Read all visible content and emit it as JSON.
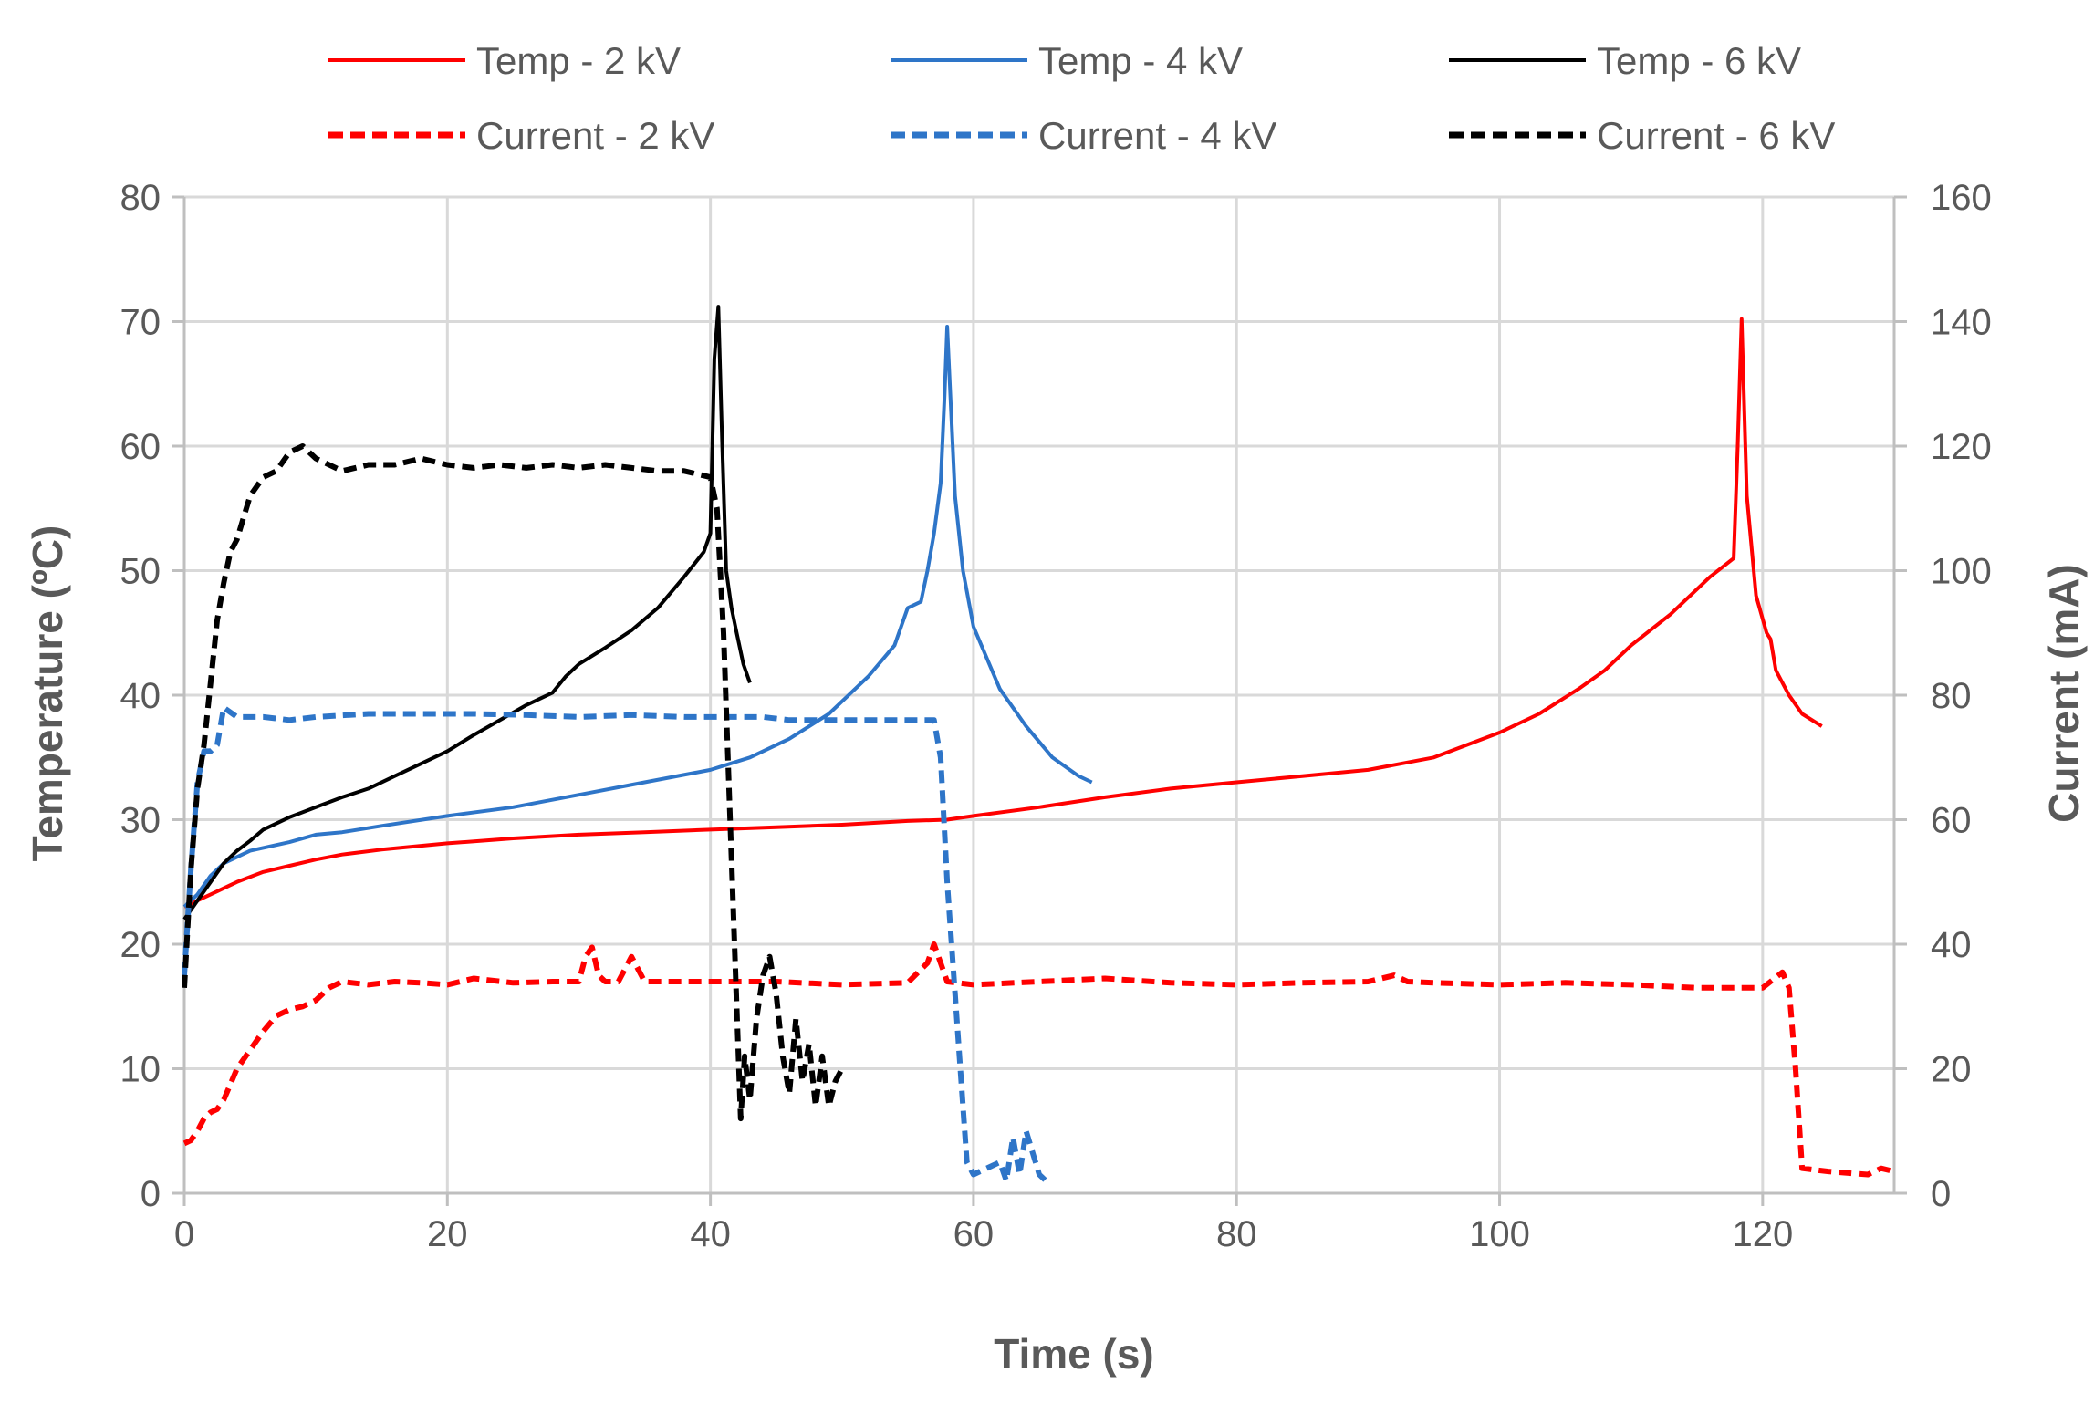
{
  "chart_data": {
    "type": "line",
    "title": "",
    "xlabel": "Time (s)",
    "ylabel": "Temperature (ºC)",
    "y2label": "Current (mA)",
    "xlim": [
      0,
      130
    ],
    "ylim": [
      0,
      80
    ],
    "y2lim": [
      0,
      160
    ],
    "xticks": [
      "0",
      "20",
      "40",
      "60",
      "80",
      "100",
      "120"
    ],
    "yticks": [
      "0",
      "10",
      "20",
      "30",
      "40",
      "50",
      "60",
      "70",
      "80"
    ],
    "y2ticks": [
      "0",
      "20",
      "40",
      "60",
      "80",
      "100",
      "120",
      "140",
      "160"
    ],
    "grid": true,
    "legend_position": "top",
    "series": [
      {
        "name": "Temp - 2 kV",
        "axis": "left",
        "color": "#ff0000",
        "dash": "solid",
        "x": [
          0,
          1,
          2,
          4,
          6,
          8,
          10,
          12,
          15,
          20,
          25,
          30,
          35,
          40,
          45,
          50,
          55,
          58,
          60,
          65,
          70,
          75,
          80,
          85,
          90,
          95,
          100,
          103,
          106,
          108,
          110,
          113,
          116,
          117.8,
          118.1,
          118.4,
          118.8,
          119.5,
          120.3,
          120.6,
          121,
          122,
          123,
          124.5
        ],
        "y": [
          23,
          23.5,
          24,
          25,
          25.8,
          26.3,
          26.8,
          27.2,
          27.6,
          28.1,
          28.5,
          28.8,
          29,
          29.2,
          29.4,
          29.6,
          29.9,
          30,
          30.3,
          31,
          31.8,
          32.5,
          33,
          33.5,
          34,
          35,
          37,
          38.5,
          40.5,
          42,
          44,
          46.5,
          49.5,
          51,
          60,
          70.2,
          56,
          48,
          45,
          44.5,
          42,
          40,
          38.5,
          37.5
        ]
      },
      {
        "name": "Temp - 4 kV",
        "axis": "left",
        "color": "#2e75c8",
        "dash": "solid",
        "x": [
          0,
          1,
          2,
          3,
          5,
          8,
          10,
          12,
          15,
          20,
          25,
          30,
          35,
          40,
          43,
          46,
          49,
          52,
          54,
          55,
          56,
          56.5,
          57,
          57.5,
          57.8,
          58,
          58.2,
          58.6,
          59.2,
          60,
          62,
          64,
          66,
          68,
          69
        ],
        "y": [
          23,
          24,
          25.5,
          26.5,
          27.5,
          28.2,
          28.8,
          29,
          29.5,
          30.3,
          31,
          32,
          33,
          34,
          35,
          36.5,
          38.5,
          41.5,
          44,
          47,
          47.5,
          50,
          53,
          57,
          64,
          69.6,
          65,
          56,
          50,
          45.5,
          40.5,
          37.5,
          35,
          33.5,
          33
        ]
      },
      {
        "name": "Temp - 6 kV",
        "axis": "left",
        "color": "#000000",
        "dash": "solid",
        "x": [
          0,
          1,
          2,
          3,
          4,
          5,
          6,
          8,
          10,
          12,
          14,
          16,
          18,
          20,
          22,
          24,
          26,
          28,
          29,
          30,
          32,
          34,
          36,
          38,
          39.5,
          40,
          40.3,
          40.6,
          40.9,
          41.2,
          41.6,
          42,
          42.5,
          43
        ],
        "y": [
          22,
          23.5,
          25,
          26.5,
          27.5,
          28.3,
          29.2,
          30.2,
          31,
          31.8,
          32.5,
          33.5,
          34.5,
          35.5,
          36.8,
          38,
          39.2,
          40.2,
          41.5,
          42.5,
          43.8,
          45.2,
          47,
          49.5,
          51.5,
          53,
          67,
          71.2,
          60,
          50,
          47,
          45,
          42.5,
          41
        ]
      },
      {
        "name": "Current -  2 kV",
        "axis": "right",
        "color": "#ff0000",
        "dash": "dashed",
        "x": [
          0,
          0.5,
          1,
          1.5,
          2,
          2.5,
          3,
          3.5,
          4,
          5,
          6,
          7,
          8,
          9,
          10,
          11,
          12,
          14,
          16,
          18,
          20,
          22,
          25,
          28,
          30,
          30.5,
          31,
          31.5,
          32,
          33,
          34,
          34.5,
          35,
          37,
          40,
          45,
          50,
          55,
          56.5,
          57,
          57.5,
          58,
          60,
          65,
          70,
          75,
          80,
          85,
          90,
          92,
          93,
          95,
          100,
          105,
          110,
          115,
          120,
          121.5,
          122,
          122.5,
          123,
          125,
          128,
          129,
          130
        ],
        "y": [
          8,
          8.5,
          10,
          12,
          13,
          13.5,
          15,
          17.5,
          20,
          23,
          26,
          28.5,
          29.5,
          30,
          31,
          33,
          34,
          33.5,
          34,
          33.8,
          33.5,
          34.5,
          33.8,
          34,
          34,
          38,
          39.5,
          35,
          34,
          34,
          38,
          36,
          34,
          34,
          34,
          34,
          33.5,
          33.8,
          37,
          40,
          37,
          34,
          33.5,
          34,
          34.5,
          33.8,
          33.5,
          33.8,
          34,
          35,
          34,
          33.8,
          33.5,
          33.8,
          33.5,
          33,
          33,
          35.5,
          33,
          20,
          4,
          3.5,
          3,
          4,
          3.5
        ]
      },
      {
        "name": "Current - 4 kV",
        "axis": "right",
        "color": "#2e75c8",
        "dash": "dashed",
        "x": [
          0,
          0.5,
          1,
          1.5,
          2,
          2.5,
          3,
          4,
          5,
          6,
          8,
          10,
          14,
          18,
          22,
          26,
          30,
          34,
          38,
          40,
          42,
          44,
          46,
          50,
          54,
          56,
          57,
          57.5,
          58,
          58.5,
          59,
          59.5,
          60,
          61,
          62,
          62.5,
          63,
          63.5,
          64,
          65,
          65.5
        ],
        "y": [
          35,
          52,
          66,
          71,
          71,
          72,
          78,
          76.5,
          76.5,
          76.5,
          76,
          76.5,
          77,
          77,
          77,
          76.8,
          76.5,
          76.8,
          76.5,
          76.5,
          76.5,
          76.5,
          76,
          76,
          76,
          76,
          76,
          70,
          50,
          35,
          20,
          5,
          3,
          4,
          5,
          2,
          9,
          3,
          10,
          3,
          2
        ]
      },
      {
        "name": "Current - 6 kV",
        "axis": "right",
        "color": "#000000",
        "dash": "dashed",
        "x": [
          0,
          0.5,
          1,
          1.5,
          2,
          2.5,
          3,
          3.5,
          4,
          5,
          6,
          7,
          8,
          9,
          10,
          12,
          14,
          16,
          18,
          20,
          22,
          24,
          26,
          28,
          30,
          32,
          34,
          36,
          38,
          40,
          40.5,
          41,
          41.5,
          42,
          42.3,
          42.6,
          43,
          43.5,
          44,
          44.5,
          45,
          45.5,
          46,
          46.5,
          47,
          47.5,
          48,
          48.5,
          49,
          49.5,
          50
        ],
        "y": [
          33,
          52,
          65,
          72,
          82,
          92,
          98,
          103,
          105,
          112,
          115,
          116,
          119,
          120,
          118,
          116,
          117,
          117,
          118,
          117,
          116.5,
          117,
          116.5,
          117,
          116.5,
          117,
          116.5,
          116,
          116,
          115,
          110,
          90,
          60,
          30,
          12,
          22,
          15,
          28,
          35,
          38,
          32,
          22,
          16,
          28,
          18,
          24,
          14,
          22,
          14,
          18,
          20
        ]
      }
    ]
  }
}
